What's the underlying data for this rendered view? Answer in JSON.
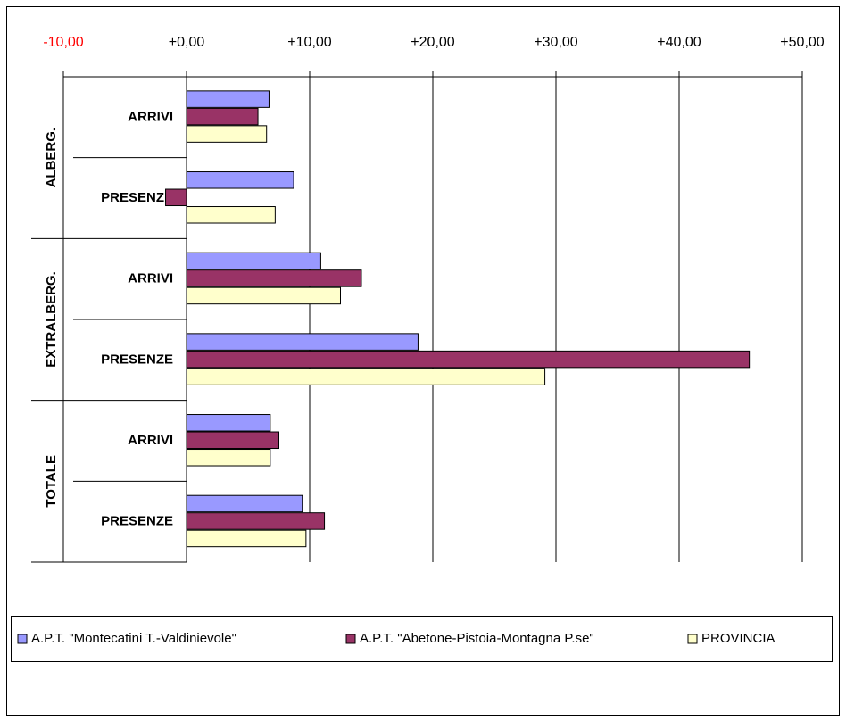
{
  "chart_data": {
    "type": "bar",
    "orientation": "horizontal",
    "groups": [
      {
        "name": "ALBERG.",
        "categories": [
          "ARRIVI",
          "PRESENZE"
        ]
      },
      {
        "name": "EXTRALBERG.",
        "categories": [
          "ARRIVI",
          "PRESENZE"
        ]
      },
      {
        "name": "TOTALE",
        "categories": [
          "ARRIVI",
          "PRESENZE"
        ]
      }
    ],
    "series": [
      {
        "name": "A.P.T. \"Montecatini T.-Valdinievole\"",
        "color": "#9999ff",
        "values": [
          6.7,
          8.7,
          10.9,
          18.8,
          6.8,
          9.4
        ]
      },
      {
        "name": "A.P.T. \"Abetone-Pistoia-Montagna P.se\"",
        "color": "#993366",
        "values": [
          5.8,
          -1.7,
          14.2,
          45.7,
          7.5,
          11.2
        ]
      },
      {
        "name": "PROVINCIA",
        "color": "#ffffcc",
        "values": [
          6.5,
          7.2,
          12.5,
          29.1,
          6.8,
          9.7
        ]
      }
    ],
    "xlim": [
      -10,
      50
    ],
    "xticks": [
      {
        "value": -10,
        "label": "-10,00"
      },
      {
        "value": 0,
        "label": "+0,00"
      },
      {
        "value": 10,
        "label": "+10,00"
      },
      {
        "value": 20,
        "label": "+20,00"
      },
      {
        "value": 30,
        "label": "+30,00"
      },
      {
        "value": 40,
        "label": "+40,00"
      },
      {
        "value": 50,
        "label": "+50,00"
      }
    ],
    "negative_tick_color": "#ff0000",
    "grid": true,
    "legend": "bottom"
  }
}
